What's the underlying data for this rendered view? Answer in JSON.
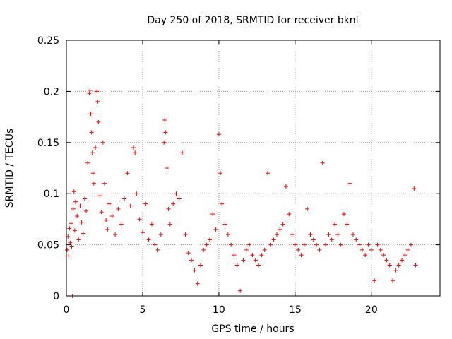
{
  "chart_data": {
    "type": "scatter",
    "title": "Day 250 of 2018, SRMTID for receiver bknl",
    "xlabel": "GPS time / hours",
    "ylabel": "SRMTID / TECUs",
    "xlim": [
      0,
      24.5
    ],
    "ylim": [
      0,
      0.25
    ],
    "x_ticks": [
      0,
      5,
      10,
      15,
      20
    ],
    "y_ticks": [
      0,
      0.05,
      0.1,
      0.15,
      0.2,
      0.25
    ],
    "x_tick_labels": [
      "0",
      "5",
      "10",
      "15",
      "20"
    ],
    "y_tick_labels": [
      "0",
      "0.05",
      "0.1",
      "0.15",
      "0.2",
      "0.25"
    ],
    "grid": true,
    "marker": "plus",
    "color": "#ff0000",
    "series": [
      {
        "name": "SRMTID",
        "points": [
          [
            0.05,
            0.045
          ],
          [
            0.1,
            0.058
          ],
          [
            0.15,
            0.039
          ],
          [
            0.2,
            0.066
          ],
          [
            0.25,
            0.052
          ],
          [
            0.3,
            0.071
          ],
          [
            0.35,
            0.048
          ],
          [
            0.4,
            0.0
          ],
          [
            0.45,
            0.085
          ],
          [
            0.5,
            0.102
          ],
          [
            0.55,
            0.064
          ],
          [
            0.6,
            0.092
          ],
          [
            0.7,
            0.078
          ],
          [
            0.8,
            0.055
          ],
          [
            0.9,
            0.088
          ],
          [
            1.0,
            0.072
          ],
          [
            1.1,
            0.061
          ],
          [
            1.2,
            0.095
          ],
          [
            1.3,
            0.083
          ],
          [
            1.4,
            0.13
          ],
          [
            1.5,
            0.198
          ],
          [
            1.55,
            0.201
          ],
          [
            1.6,
            0.178
          ],
          [
            1.65,
            0.16
          ],
          [
            1.7,
            0.14
          ],
          [
            1.75,
            0.12
          ],
          [
            1.8,
            0.11
          ],
          [
            1.9,
            0.145
          ],
          [
            2.0,
            0.2
          ],
          [
            2.05,
            0.19
          ],
          [
            2.1,
            0.17
          ],
          [
            2.2,
            0.098
          ],
          [
            2.3,
            0.082
          ],
          [
            2.4,
            0.15
          ],
          [
            2.5,
            0.11
          ],
          [
            2.6,
            0.074
          ],
          [
            2.7,
            0.065
          ],
          [
            2.8,
            0.09
          ],
          [
            3.0,
            0.078
          ],
          [
            3.2,
            0.06
          ],
          [
            3.4,
            0.085
          ],
          [
            3.6,
            0.07
          ],
          [
            3.8,
            0.095
          ],
          [
            4.0,
            0.12
          ],
          [
            4.2,
            0.088
          ],
          [
            4.4,
            0.145
          ],
          [
            4.5,
            0.14
          ],
          [
            4.6,
            0.1
          ],
          [
            4.8,
            0.075
          ],
          [
            5.0,
            0.062
          ],
          [
            5.2,
            0.09
          ],
          [
            5.4,
            0.055
          ],
          [
            5.6,
            0.07
          ],
          [
            5.8,
            0.05
          ],
          [
            6.0,
            0.045
          ],
          [
            6.2,
            0.06
          ],
          [
            6.4,
            0.15
          ],
          [
            6.45,
            0.172
          ],
          [
            6.5,
            0.16
          ],
          [
            6.6,
            0.125
          ],
          [
            6.7,
            0.085
          ],
          [
            6.8,
            0.07
          ],
          [
            7.0,
            0.09
          ],
          [
            7.2,
            0.1
          ],
          [
            7.4,
            0.095
          ],
          [
            7.6,
            0.14
          ],
          [
            7.8,
            0.06
          ],
          [
            8.0,
            0.042
          ],
          [
            8.2,
            0.035
          ],
          [
            8.4,
            0.025
          ],
          [
            8.6,
            0.012
          ],
          [
            8.8,
            0.03
          ],
          [
            9.0,
            0.045
          ],
          [
            9.2,
            0.05
          ],
          [
            9.4,
            0.055
          ],
          [
            9.6,
            0.08
          ],
          [
            9.8,
            0.065
          ],
          [
            10.0,
            0.158
          ],
          [
            10.1,
            0.12
          ],
          [
            10.2,
            0.09
          ],
          [
            10.4,
            0.07
          ],
          [
            10.6,
            0.06
          ],
          [
            10.8,
            0.05
          ],
          [
            11.0,
            0.04
          ],
          [
            11.2,
            0.03
          ],
          [
            11.4,
            0.005
          ],
          [
            11.6,
            0.035
          ],
          [
            11.8,
            0.045
          ],
          [
            12.0,
            0.05
          ],
          [
            12.2,
            0.04
          ],
          [
            12.4,
            0.035
          ],
          [
            12.6,
            0.03
          ],
          [
            12.8,
            0.04
          ],
          [
            13.0,
            0.045
          ],
          [
            13.2,
            0.12
          ],
          [
            13.4,
            0.05
          ],
          [
            13.6,
            0.055
          ],
          [
            13.8,
            0.06
          ],
          [
            14.0,
            0.065
          ],
          [
            14.2,
            0.07
          ],
          [
            14.4,
            0.107
          ],
          [
            14.6,
            0.08
          ],
          [
            14.8,
            0.06
          ],
          [
            15.0,
            0.05
          ],
          [
            15.2,
            0.045
          ],
          [
            15.4,
            0.04
          ],
          [
            15.6,
            0.05
          ],
          [
            15.8,
            0.085
          ],
          [
            16.0,
            0.06
          ],
          [
            16.2,
            0.055
          ],
          [
            16.4,
            0.05
          ],
          [
            16.6,
            0.045
          ],
          [
            16.8,
            0.13
          ],
          [
            17.0,
            0.05
          ],
          [
            17.2,
            0.06
          ],
          [
            17.4,
            0.055
          ],
          [
            17.6,
            0.07
          ],
          [
            17.8,
            0.06
          ],
          [
            18.0,
            0.05
          ],
          [
            18.2,
            0.08
          ],
          [
            18.4,
            0.07
          ],
          [
            18.6,
            0.11
          ],
          [
            18.8,
            0.06
          ],
          [
            19.0,
            0.055
          ],
          [
            19.2,
            0.05
          ],
          [
            19.4,
            0.045
          ],
          [
            19.6,
            0.04
          ],
          [
            19.8,
            0.05
          ],
          [
            20.0,
            0.045
          ],
          [
            20.2,
            0.015
          ],
          [
            20.4,
            0.05
          ],
          [
            20.6,
            0.045
          ],
          [
            20.8,
            0.04
          ],
          [
            21.0,
            0.035
          ],
          [
            21.2,
            0.03
          ],
          [
            21.4,
            0.015
          ],
          [
            21.6,
            0.025
          ],
          [
            21.8,
            0.03
          ],
          [
            22.0,
            0.035
          ],
          [
            22.2,
            0.04
          ],
          [
            22.4,
            0.045
          ],
          [
            22.6,
            0.05
          ],
          [
            22.8,
            0.105
          ],
          [
            22.9,
            0.03
          ]
        ]
      }
    ]
  }
}
